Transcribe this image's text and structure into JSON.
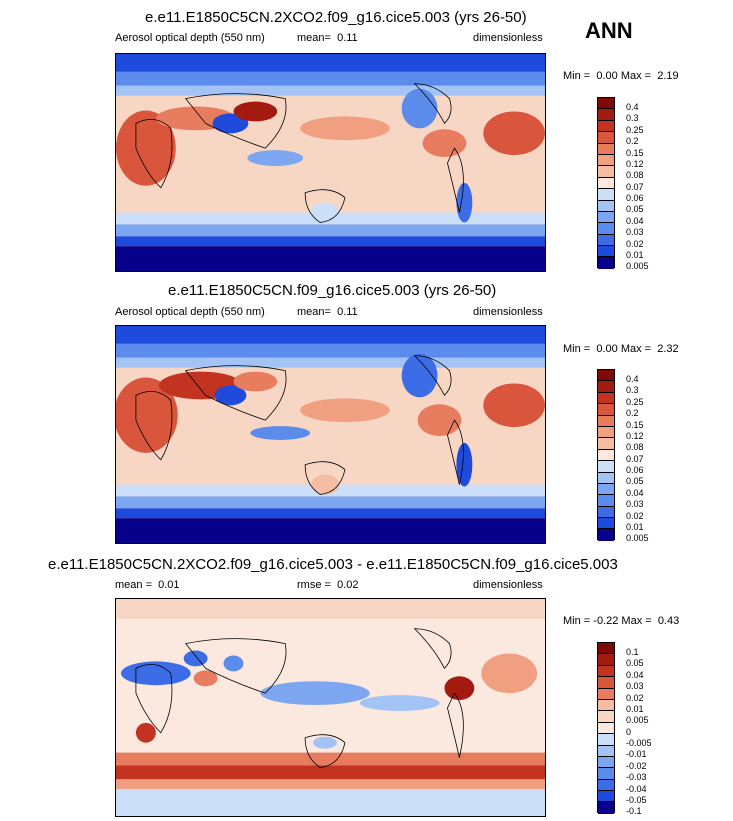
{
  "season_label": "ANN",
  "colors": {
    "blues": [
      "#08008a",
      "#0a1fc1",
      "#1f4bdc",
      "#3c6ce6",
      "#5b8cec",
      "#7ca7f0",
      "#a2c3f4",
      "#cbdff8"
    ],
    "neutral": "#fbe9df",
    "reds": [
      "#f8d6c4",
      "#f6bda3",
      "#f09f80",
      "#e87c5e",
      "#d9553b",
      "#c33322",
      "#a31a10",
      "#7c0a05"
    ]
  },
  "chart_data": [
    {
      "type": "heatmap",
      "title": "e.e11.E1850C5CN.2XCO2.f09_g16.cice5.003 (yrs 26-50)",
      "variable": "Aerosol optical depth (550 nm)",
      "stat_label": "mean=",
      "stat_value": "0.11",
      "units": "dimensionless",
      "min_label": "Min =",
      "min": "0.00",
      "max_label": "Max =",
      "max": "2.19",
      "colorbar_levels": [
        "0.4",
        "0.3",
        "0.25",
        "0.2",
        "0.15",
        "0.12",
        "0.08",
        "0.07",
        "0.06",
        "0.05",
        "0.04",
        "0.03",
        "0.02",
        "0.01",
        "0.005"
      ]
    },
    {
      "type": "heatmap",
      "title": "e.e11.E1850C5CN.f09_g16.cice5.003 (yrs 26-50)",
      "variable": "Aerosol optical depth (550 nm)",
      "stat_label": "mean=",
      "stat_value": "0.11",
      "units": "dimensionless",
      "min_label": "Min =",
      "min": "0.00",
      "max_label": "Max =",
      "max": "2.32",
      "colorbar_levels": [
        "0.4",
        "0.3",
        "0.25",
        "0.2",
        "0.15",
        "0.12",
        "0.08",
        "0.07",
        "0.06",
        "0.05",
        "0.04",
        "0.03",
        "0.02",
        "0.01",
        "0.005"
      ]
    },
    {
      "type": "heatmap",
      "title": "e.e11.E1850C5CN.2XCO2.f09_g16.cice5.003 - e.e11.E1850C5CN.f09_g16.cice5.003",
      "mean_label": "mean =",
      "mean_value": "0.01",
      "stat_label": "rmse =",
      "stat_value": "0.02",
      "units": "dimensionless",
      "min_label": "Min =",
      "min": "-0.22",
      "max_label": "Max =",
      "max": "0.43",
      "colorbar_levels": [
        "0.1",
        "0.05",
        "0.04",
        "0.03",
        "0.02",
        "0.01",
        "0.005",
        "0",
        "-0.005",
        "-0.01",
        "-0.02",
        "-0.03",
        "-0.04",
        "-0.05",
        "-0.1"
      ]
    }
  ]
}
